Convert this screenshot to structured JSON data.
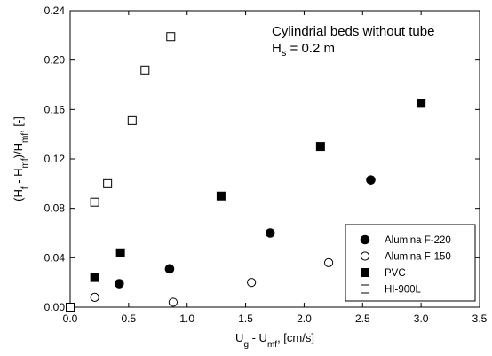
{
  "chart_data": {
    "type": "scatter",
    "annotation": {
      "line1": "Cylindrial beds without tube",
      "line2_main": "H",
      "line2_sub": "s",
      "line2_rest": " = 0.2 m"
    },
    "xlabel": {
      "parts": [
        {
          "t": "U",
          "sub": false
        },
        {
          "t": "g",
          "sub": true
        },
        {
          "t": " - U",
          "sub": false
        },
        {
          "t": "mf",
          "sub": true
        },
        {
          "t": ", [cm/s]",
          "sub": false
        }
      ]
    },
    "ylabel": {
      "parts": [
        {
          "t": "(H",
          "sub": false
        },
        {
          "t": "f",
          "sub": true
        },
        {
          "t": " - H",
          "sub": false
        },
        {
          "t": "mf",
          "sub": true
        },
        {
          "t": ")/H",
          "sub": false
        },
        {
          "t": "mf",
          "sub": true
        },
        {
          "t": ", [-]",
          "sub": false
        }
      ]
    },
    "xlim": [
      0.0,
      3.5
    ],
    "ylim": [
      0.0,
      0.24
    ],
    "xticks": [
      "0.0",
      "0.5",
      "1.0",
      "1.5",
      "2.0",
      "2.5",
      "3.0",
      "3.5"
    ],
    "yticks": [
      "0.00",
      "0.04",
      "0.08",
      "0.12",
      "0.16",
      "0.20",
      "0.24"
    ],
    "grid": false,
    "legend_position": "bottom-right",
    "series": [
      {
        "name": "Alumina F-220",
        "marker": "filled-circle",
        "points": [
          [
            0.42,
            0.019
          ],
          [
            0.85,
            0.031
          ],
          [
            1.71,
            0.06
          ],
          [
            2.57,
            0.103
          ]
        ]
      },
      {
        "name": "Alumina F-150",
        "marker": "open-circle",
        "points": [
          [
            0.21,
            0.008
          ],
          [
            0.88,
            0.004
          ],
          [
            1.55,
            0.02
          ],
          [
            2.21,
            0.036
          ]
        ]
      },
      {
        "name": "PVC",
        "marker": "filled-square",
        "points": [
          [
            0.21,
            0.024
          ],
          [
            0.43,
            0.044
          ],
          [
            1.29,
            0.09
          ],
          [
            2.14,
            0.13
          ],
          [
            3.0,
            0.165
          ]
        ]
      },
      {
        "name": "HI-900L",
        "marker": "open-square",
        "points": [
          [
            0.0,
            0.0
          ],
          [
            0.21,
            0.085
          ],
          [
            0.32,
            0.1
          ],
          [
            0.53,
            0.151
          ],
          [
            0.64,
            0.192
          ],
          [
            0.86,
            0.219
          ]
        ]
      }
    ]
  }
}
